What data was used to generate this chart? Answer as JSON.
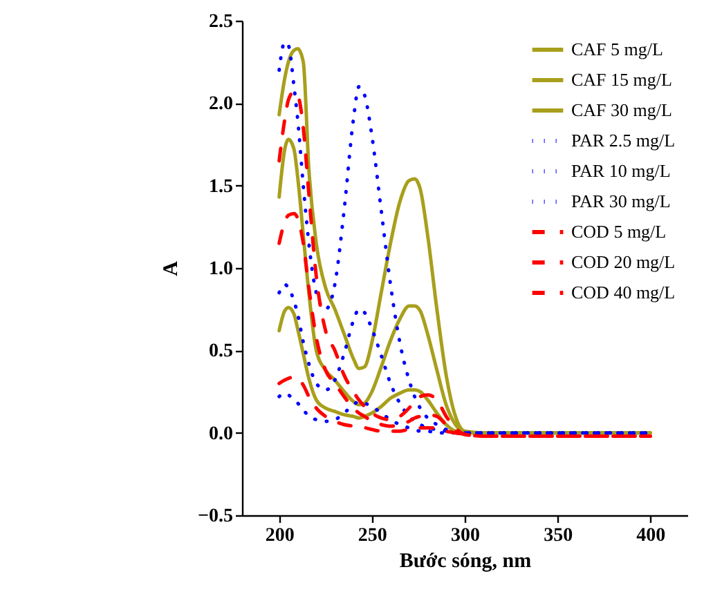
{
  "chart_data": {
    "type": "line",
    "xlabel": "Bước sóng, nm",
    "ylabel": "A",
    "x": [
      200,
      203,
      205,
      208,
      210,
      213,
      216,
      220,
      225,
      230,
      235,
      240,
      243,
      246,
      250,
      255,
      260,
      265,
      270,
      273,
      276,
      280,
      285,
      290,
      295,
      300,
      310,
      350,
      400
    ],
    "series": [
      {
        "name": "CAF 5 mg/L",
        "color": "#a89f1c",
        "line_style": "solid",
        "values": [
          0.62,
          0.74,
          0.76,
          0.72,
          0.63,
          0.48,
          0.33,
          0.2,
          0.15,
          0.13,
          0.11,
          0.1,
          0.09,
          0.1,
          0.12,
          0.16,
          0.21,
          0.24,
          0.26,
          0.26,
          0.25,
          0.2,
          0.12,
          0.05,
          0.01,
          0,
          0,
          0,
          0
        ]
      },
      {
        "name": "CAF 15 mg/L",
        "color": "#a89f1c",
        "line_style": "solid",
        "values": [
          1.43,
          1.72,
          1.78,
          1.72,
          1.55,
          1.2,
          0.85,
          0.5,
          0.38,
          0.32,
          0.25,
          0.19,
          0.17,
          0.18,
          0.25,
          0.4,
          0.56,
          0.69,
          0.77,
          0.77,
          0.74,
          0.6,
          0.38,
          0.17,
          0.05,
          0,
          0,
          0,
          0
        ]
      },
      {
        "name": "CAF 30 mg/L",
        "color": "#a89f1c",
        "line_style": "solid",
        "values": [
          1.93,
          2.15,
          2.25,
          2.32,
          2.33,
          2.25,
          1.6,
          1.15,
          0.88,
          0.75,
          0.6,
          0.45,
          0.39,
          0.4,
          0.55,
          0.85,
          1.15,
          1.4,
          1.53,
          1.54,
          1.48,
          1.2,
          0.75,
          0.35,
          0.1,
          0.01,
          0,
          0,
          0
        ]
      },
      {
        "name": "PAR 2.5 mg/L",
        "color": "#0000ff",
        "line_style": "dotted",
        "values": [
          0.22,
          0.24,
          0.23,
          0.2,
          0.18,
          0.14,
          0.1,
          0.08,
          0.07,
          0.08,
          0.12,
          0.17,
          0.19,
          0.18,
          0.16,
          0.12,
          0.08,
          0.05,
          0.03,
          0.02,
          0.01,
          0.01,
          0,
          0,
          0,
          0,
          0,
          0,
          0
        ]
      },
      {
        "name": "PAR 10 mg/L",
        "color": "#0000ff",
        "line_style": "dotted",
        "values": [
          0.85,
          0.9,
          0.88,
          0.8,
          0.72,
          0.55,
          0.42,
          0.3,
          0.26,
          0.32,
          0.48,
          0.68,
          0.75,
          0.73,
          0.63,
          0.47,
          0.3,
          0.18,
          0.1,
          0.07,
          0.05,
          0.03,
          0.02,
          0.01,
          0,
          0,
          0,
          0,
          0
        ]
      },
      {
        "name": "PAR 30 mg/L",
        "color": "#0000ff",
        "line_style": "dotted",
        "values": [
          2.2,
          2.37,
          2.35,
          2.1,
          1.9,
          1.5,
          1.15,
          0.85,
          0.75,
          0.9,
          1.35,
          1.9,
          2.1,
          2.05,
          1.8,
          1.35,
          0.9,
          0.55,
          0.32,
          0.22,
          0.15,
          0.09,
          0.05,
          0.02,
          0.01,
          0,
          0,
          0,
          0
        ]
      },
      {
        "name": "COD 5 mg/L",
        "color": "#ff0000",
        "line_style": "dashed",
        "values": [
          0.3,
          0.32,
          0.33,
          0.34,
          0.33,
          0.29,
          0.22,
          0.15,
          0.1,
          0.07,
          0.05,
          0.04,
          0.03,
          0.03,
          0.02,
          0.01,
          0.01,
          0.01,
          0.02,
          0.02,
          0.03,
          0.03,
          0.03,
          0.01,
          0,
          -0.01,
          -0.02,
          -0.02,
          -0.02
        ]
      },
      {
        "name": "COD 20 mg/L",
        "color": "#ff0000",
        "line_style": "dashed",
        "values": [
          1.15,
          1.28,
          1.32,
          1.33,
          1.3,
          1.15,
          0.88,
          0.58,
          0.38,
          0.3,
          0.22,
          0.15,
          0.12,
          0.1,
          0.07,
          0.05,
          0.04,
          0.05,
          0.07,
          0.09,
          0.1,
          0.11,
          0.1,
          0.05,
          0.01,
          -0.01,
          -0.02,
          -0.02,
          -0.02
        ]
      },
      {
        "name": "COD 40 mg/L",
        "color": "#ff0000",
        "line_style": "dashed",
        "values": [
          1.65,
          1.9,
          2.02,
          2.07,
          2.05,
          1.85,
          1.45,
          0.95,
          0.62,
          0.5,
          0.35,
          0.25,
          0.2,
          0.16,
          0.12,
          0.09,
          0.08,
          0.1,
          0.15,
          0.19,
          0.22,
          0.23,
          0.2,
          0.1,
          0.03,
          -0.01,
          -0.02,
          -0.02,
          -0.02
        ]
      }
    ],
    "xlim": [
      180,
      420
    ],
    "xticks": [
      200,
      250,
      300,
      350,
      400
    ],
    "ylim": [
      -0.5,
      2.5
    ],
    "yticks": [
      -0.5,
      {
        "value": 0,
        "label": "0.0"
      },
      0.5,
      {
        "value": 1,
        "label": "1.0"
      },
      1.5,
      {
        "value": 2,
        "label": "2.0"
      },
      2.5
    ],
    "grid": false,
    "legend": "top right"
  }
}
